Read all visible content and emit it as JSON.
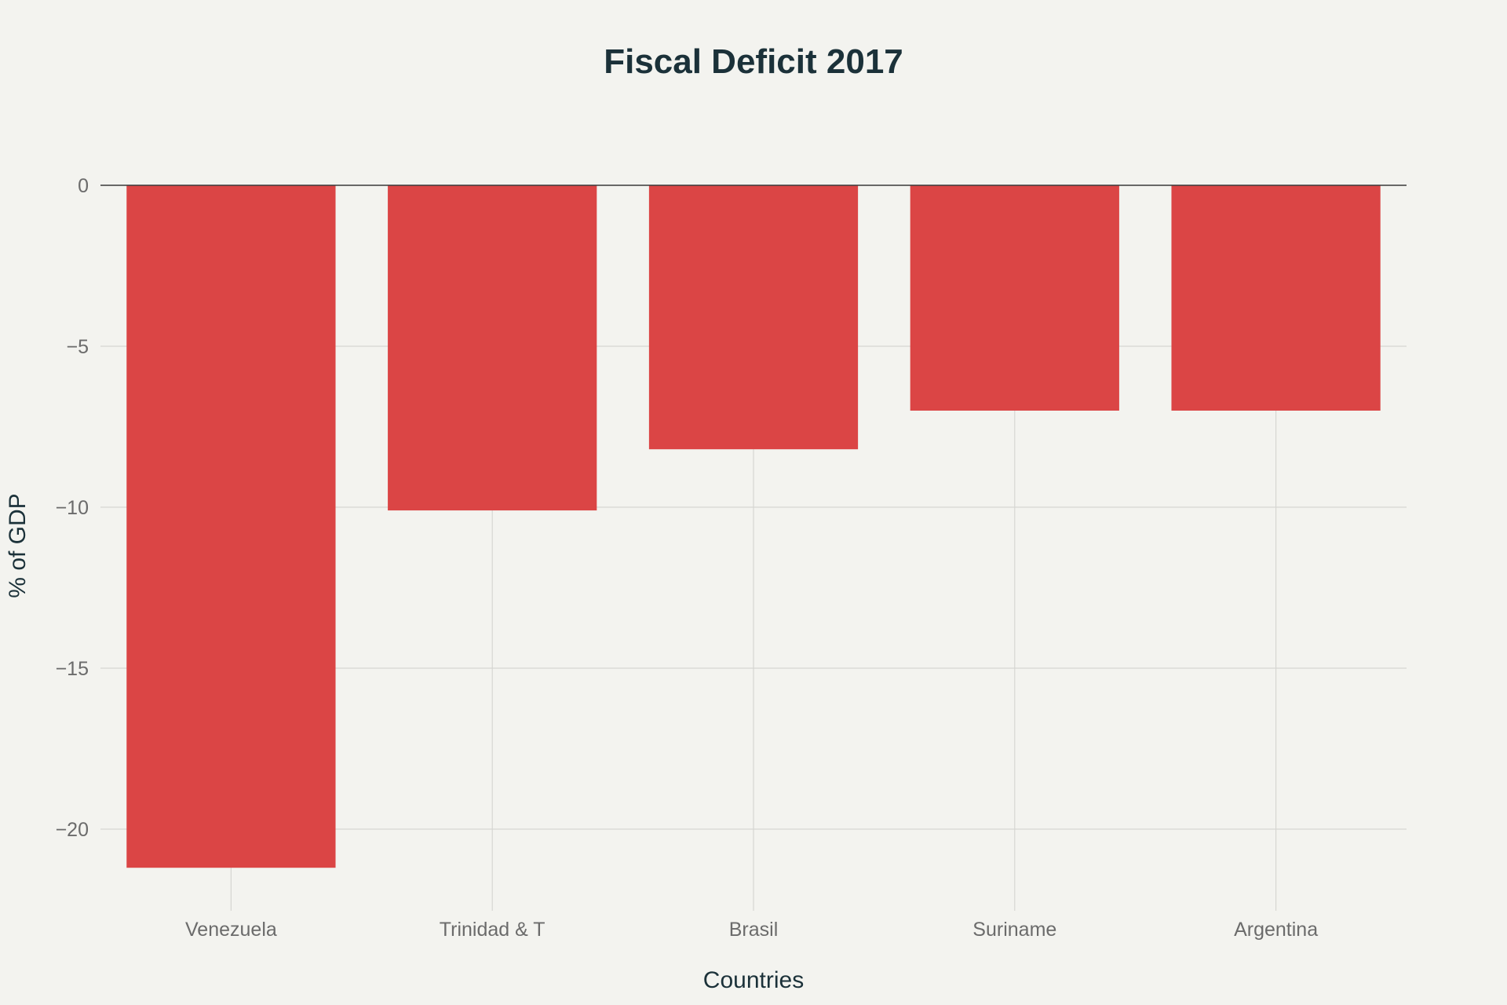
{
  "chart_data": {
    "type": "bar",
    "title": "Fiscal Deficit 2017",
    "xlabel": "Countries",
    "ylabel": "% of GDP",
    "categories": [
      "Venezuela",
      "Trinidad & T",
      "Brasil",
      "Suriname",
      "Argentina"
    ],
    "values": [
      -21.2,
      -10.1,
      -8.2,
      -7.0,
      -7.0
    ],
    "ylim": [
      -22.4,
      0
    ],
    "yticks": [
      0,
      -5,
      -10,
      -15,
      -20
    ],
    "ytick_labels": [
      "0",
      "−5",
      "−10",
      "−15",
      "−20"
    ],
    "grid": true,
    "bar_color": "#db4545",
    "background": "#f3f3ef"
  }
}
